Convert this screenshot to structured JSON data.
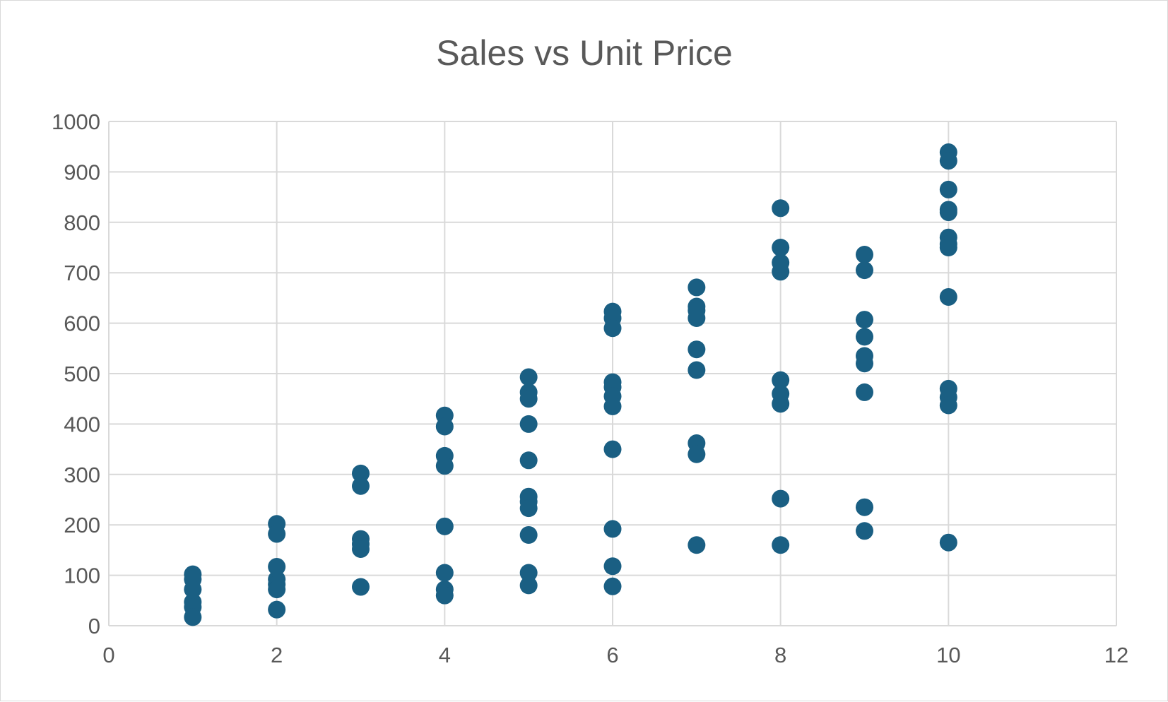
{
  "chart_data": {
    "type": "scatter",
    "title": "Sales vs Unit Price",
    "xlabel": "",
    "ylabel": "",
    "xlim": [
      0,
      12
    ],
    "ylim": [
      0,
      1000
    ],
    "x_ticks": [
      0,
      2,
      4,
      6,
      8,
      10,
      12
    ],
    "y_ticks": [
      0,
      100,
      200,
      300,
      400,
      500,
      600,
      700,
      800,
      900,
      1000
    ],
    "grid": true,
    "legend": "none",
    "marker_color": "#1a5f83",
    "series": [
      {
        "points": [
          [
            1,
            102
          ],
          [
            1,
            92
          ],
          [
            1,
            72
          ],
          [
            1,
            47
          ],
          [
            1,
            37
          ],
          [
            1,
            17
          ],
          [
            2,
            202
          ],
          [
            2,
            182
          ],
          [
            2,
            117
          ],
          [
            2,
            92
          ],
          [
            2,
            82
          ],
          [
            2,
            72
          ],
          [
            2,
            32
          ],
          [
            3,
            302
          ],
          [
            3,
            277
          ],
          [
            3,
            172
          ],
          [
            3,
            162
          ],
          [
            3,
            152
          ],
          [
            3,
            77
          ],
          [
            4,
            417
          ],
          [
            4,
            395
          ],
          [
            4,
            337
          ],
          [
            4,
            317
          ],
          [
            4,
            197
          ],
          [
            4,
            105
          ],
          [
            4,
            72
          ],
          [
            4,
            60
          ],
          [
            5,
            493
          ],
          [
            5,
            463
          ],
          [
            5,
            450
          ],
          [
            5,
            400
          ],
          [
            5,
            328
          ],
          [
            5,
            256
          ],
          [
            5,
            246
          ],
          [
            5,
            233
          ],
          [
            5,
            180
          ],
          [
            5,
            105
          ],
          [
            5,
            80
          ],
          [
            6,
            623
          ],
          [
            6,
            610
          ],
          [
            6,
            590
          ],
          [
            6,
            483
          ],
          [
            6,
            473
          ],
          [
            6,
            455
          ],
          [
            6,
            435
          ],
          [
            6,
            350
          ],
          [
            6,
            192
          ],
          [
            6,
            118
          ],
          [
            6,
            78
          ],
          [
            7,
            671
          ],
          [
            7,
            633
          ],
          [
            7,
            625
          ],
          [
            7,
            610
          ],
          [
            7,
            548
          ],
          [
            7,
            507
          ],
          [
            7,
            362
          ],
          [
            7,
            340
          ],
          [
            7,
            160
          ],
          [
            8,
            828
          ],
          [
            8,
            750
          ],
          [
            8,
            720
          ],
          [
            8,
            702
          ],
          [
            8,
            487
          ],
          [
            8,
            460
          ],
          [
            8,
            440
          ],
          [
            8,
            252
          ],
          [
            8,
            160
          ],
          [
            9,
            736
          ],
          [
            9,
            705
          ],
          [
            9,
            607
          ],
          [
            9,
            573
          ],
          [
            9,
            535
          ],
          [
            9,
            520
          ],
          [
            9,
            463
          ],
          [
            9,
            235
          ],
          [
            9,
            188
          ],
          [
            10,
            939
          ],
          [
            10,
            922
          ],
          [
            10,
            865
          ],
          [
            10,
            825
          ],
          [
            10,
            820
          ],
          [
            10,
            770
          ],
          [
            10,
            757
          ],
          [
            10,
            750
          ],
          [
            10,
            652
          ],
          [
            10,
            470
          ],
          [
            10,
            453
          ],
          [
            10,
            437
          ],
          [
            10,
            165
          ]
        ]
      }
    ]
  }
}
